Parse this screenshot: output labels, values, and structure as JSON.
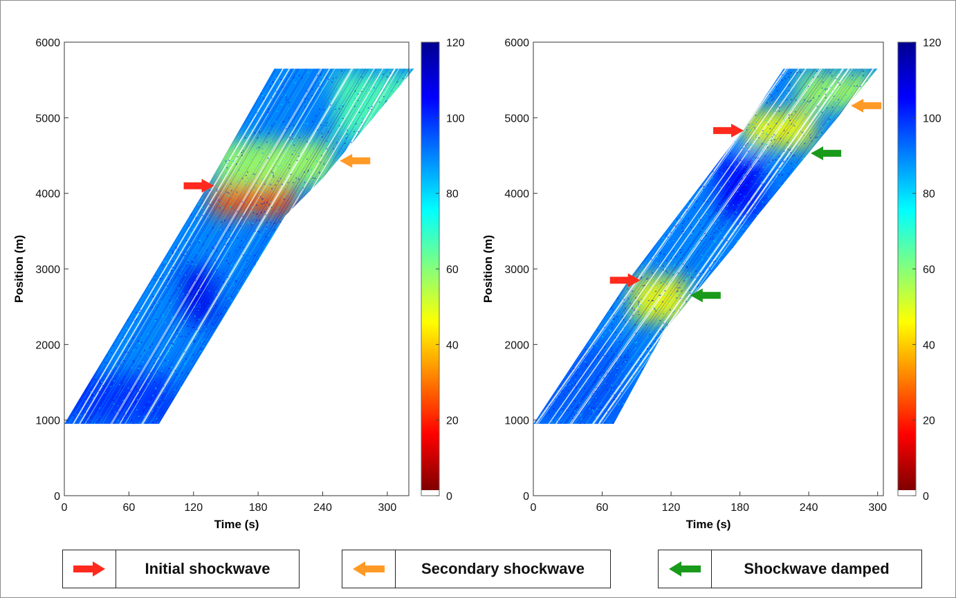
{
  "chart_data": [
    {
      "type": "scatter",
      "subtype": "space-time speed heatmap (colored trajectories)",
      "xlabel": "Time (s)",
      "ylabel": "Position (m)",
      "xlim": [
        0,
        320
      ],
      "ylim": [
        0,
        6000
      ],
      "xticks": [
        0,
        60,
        120,
        180,
        240,
        300
      ],
      "yticks": [
        0,
        1000,
        2000,
        3000,
        4000,
        5000,
        6000
      ],
      "colorbar": {
        "min": 0,
        "max": 120,
        "ticks": [
          0,
          20,
          40,
          60,
          80,
          100,
          120
        ]
      },
      "band": {
        "bottom_y": 950,
        "top_y": 5650,
        "left_edge": [
          [
            0,
            950
          ],
          [
            133,
            4100
          ],
          [
            195,
            5650
          ]
        ],
        "right_edge": [
          [
            88,
            950
          ],
          [
            205,
            3700
          ],
          [
            240,
            4200
          ],
          [
            325,
            5650
          ]
        ]
      },
      "regions": [
        {
          "kind": "free-flow",
          "speed": 100,
          "x": [
            0,
            100
          ],
          "y": [
            950,
            1600
          ]
        },
        {
          "kind": "free-flow",
          "speed": 108,
          "x": [
            110,
            140
          ],
          "y": [
            2300,
            3000
          ]
        },
        {
          "kind": "congestion",
          "speed": 25,
          "x": [
            135,
            215
          ],
          "y": [
            3700,
            4100
          ]
        },
        {
          "kind": "slowdown",
          "speed": 55,
          "x": [
            140,
            250
          ],
          "y": [
            4100,
            4700
          ]
        },
        {
          "kind": "slowdown",
          "speed": 65,
          "x": [
            250,
            325
          ],
          "y": [
            4700,
            5600
          ]
        }
      ],
      "annotations": [
        {
          "type": "initial",
          "x": 125,
          "y": 4100
        },
        {
          "type": "secondary",
          "x": 270,
          "y": 4430
        }
      ]
    },
    {
      "type": "scatter",
      "subtype": "space-time speed heatmap (colored trajectories)",
      "xlabel": "Time (s)",
      "ylabel": "Position (m)",
      "xlim": [
        0,
        305
      ],
      "ylim": [
        0,
        6000
      ],
      "xticks": [
        0,
        60,
        120,
        180,
        240,
        300
      ],
      "yticks": [
        0,
        1000,
        2000,
        3000,
        4000,
        5000,
        6000
      ],
      "colorbar": {
        "min": 0,
        "max": 120,
        "ticks": [
          0,
          20,
          40,
          60,
          80,
          100,
          120
        ]
      },
      "band": {
        "bottom_y": 950,
        "top_y": 5650,
        "left_edge": [
          [
            0,
            950
          ],
          [
            85,
            2900
          ],
          [
            183,
            4850
          ],
          [
            218,
            5650
          ]
        ],
        "right_edge": [
          [
            70,
            950
          ],
          [
            115,
            2200
          ],
          [
            175,
            3300
          ],
          [
            195,
            3700
          ],
          [
            300,
            5650
          ]
        ]
      },
      "regions": [
        {
          "kind": "free-flow",
          "speed": 95,
          "x": [
            0,
            80
          ],
          "y": [
            950,
            2000
          ]
        },
        {
          "kind": "slowdown",
          "speed": 45,
          "x": [
            85,
            135
          ],
          "y": [
            2300,
            2900
          ]
        },
        {
          "kind": "free-flow",
          "speed": 105,
          "x": [
            160,
            200
          ],
          "y": [
            3700,
            4500
          ]
        },
        {
          "kind": "slowdown",
          "speed": 45,
          "x": [
            183,
            245
          ],
          "y": [
            4600,
            5100
          ]
        },
        {
          "kind": "slowdown",
          "speed": 55,
          "x": [
            230,
            300
          ],
          "y": [
            5100,
            5600
          ]
        }
      ],
      "annotations": [
        {
          "type": "initial",
          "x": 80,
          "y": 2850
        },
        {
          "type": "damped",
          "x": 150,
          "y": 2650
        },
        {
          "type": "initial",
          "x": 170,
          "y": 4830
        },
        {
          "type": "damped",
          "x": 255,
          "y": 4530
        },
        {
          "type": "secondary",
          "x": 290,
          "y": 5160
        }
      ]
    }
  ],
  "legend": [
    {
      "key": "initial",
      "label": "Initial shockwave",
      "color": "#ff2a1d",
      "direction": "right"
    },
    {
      "key": "secondary",
      "label": "Secondary shockwave",
      "color": "#ff9a26",
      "direction": "left"
    },
    {
      "key": "damped",
      "label": "Shockwave damped",
      "color": "#1a9a1a",
      "direction": "left"
    }
  ],
  "colors": {
    "jet": [
      "#7f0000",
      "#ff0000",
      "#ff8000",
      "#ffff00",
      "#80ff80",
      "#00ffff",
      "#0080ff",
      "#0000ff",
      "#00008f"
    ]
  }
}
